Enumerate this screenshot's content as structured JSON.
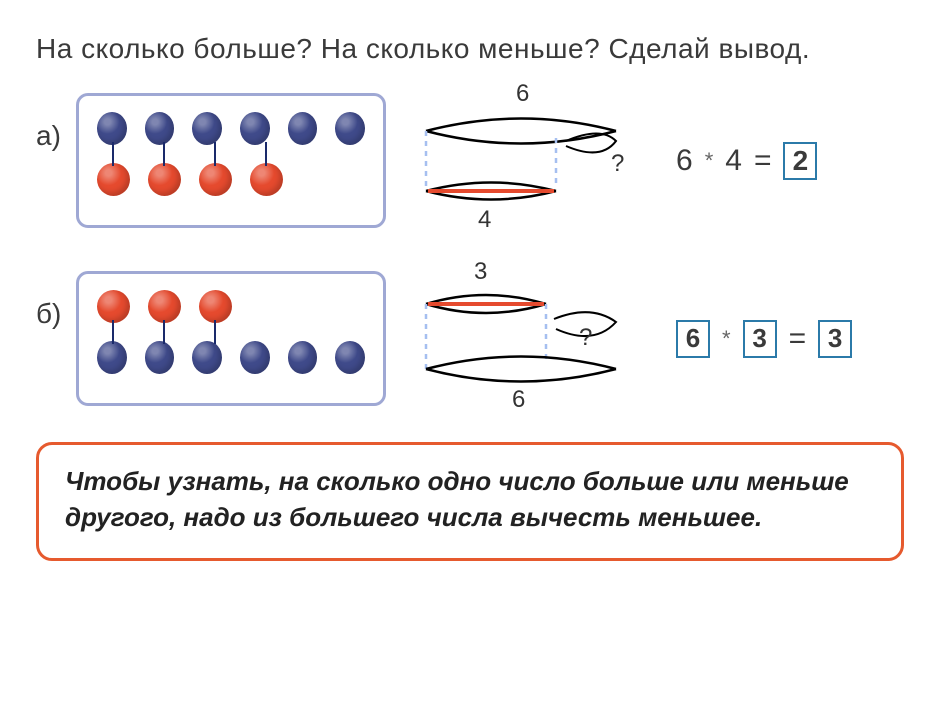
{
  "prompt": "На сколько больше? На сколько меньше? Сделай вывод.",
  "colors": {
    "blue_bead": "#3f4a8a",
    "red_bead": "#e54a2e",
    "box_border": "#9fa8d4",
    "answer_border": "#2b7aa9",
    "rule_border": "#e65a2e",
    "arc_line": "#000000",
    "bar_blue": "#3f4a8a",
    "bar_red": "#e54a2e",
    "dash": "#a6bff0"
  },
  "tasks": [
    {
      "label": "а)",
      "top_row": {
        "color": "blue",
        "count": 6
      },
      "bottom_row": {
        "color": "red",
        "count": 4
      },
      "links": 4,
      "diagram": {
        "top_value": "6",
        "bottom_value": "4",
        "mark": "?",
        "long_on_top": true,
        "long_color_red": false
      },
      "equation": {
        "a": "6",
        "op": "*",
        "b": "4",
        "eq": "=",
        "result": "2",
        "boxed": [
          "result"
        ],
        "bold": [
          "result"
        ]
      }
    },
    {
      "label": "б)",
      "top_row": {
        "color": "red",
        "count": 3
      },
      "bottom_row": {
        "color": "blue",
        "count": 6
      },
      "links": 3,
      "diagram": {
        "top_value": "3",
        "bottom_value": "6",
        "mark": "?",
        "long_on_top": false,
        "long_color_red": false
      },
      "equation": {
        "a": "6",
        "op": "*",
        "b": "3",
        "eq": "=",
        "result": "3",
        "boxed": [
          "a",
          "b",
          "result"
        ],
        "bold": []
      }
    }
  ],
  "rule": "Чтобы узнать, на сколько одно число больше или меньше другого, надо из большего числа вычесть меньшее."
}
